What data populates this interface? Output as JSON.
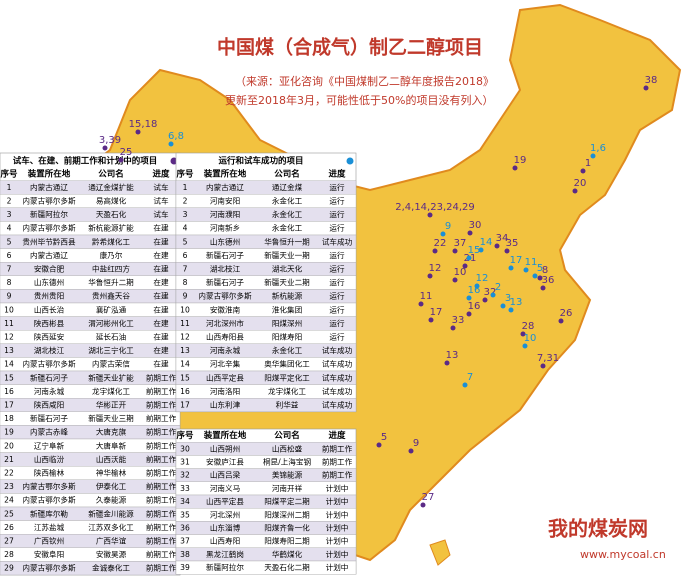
{
  "title": "中国煤（合成气）制乙二醇项目",
  "source_line1": "（来源：亚化咨询《中国煤制乙二醇年度报告2018》",
  "source_line2": "更新至2018年3月，可能性低于50%的项目没有列入）",
  "table_planned": {
    "title": "试车、在建、前期工作和计划中的项目",
    "columns": [
      "序号",
      "装置所在地",
      "公司名",
      "进度"
    ],
    "rows": [
      [
        "1",
        "内蒙古通辽",
        "通辽金煤扩能",
        "试车"
      ],
      [
        "2",
        "内蒙古鄂尔多斯",
        "易高煤化",
        "试车"
      ],
      [
        "3",
        "新疆阿拉尔",
        "天盈石化",
        "试车"
      ],
      [
        "4",
        "内蒙古鄂尔多斯",
        "新杭能源扩能",
        "在建"
      ],
      [
        "5",
        "贵州毕节黔西县",
        "黔希煤化工",
        "在建"
      ],
      [
        "6",
        "内蒙古通辽",
        "康乃尔",
        "在建"
      ],
      [
        "7",
        "安徽合肥",
        "中盐红四方",
        "在建"
      ],
      [
        "8",
        "山东德州",
        "华鲁恒升二期",
        "在建"
      ],
      [
        "9",
        "贵州贵阳",
        "贵州鑫天谷",
        "在建"
      ],
      [
        "10",
        "山西长治",
        "襄矿泓通",
        "在建"
      ],
      [
        "11",
        "陕西彬县",
        "渭河彬州化工",
        "在建"
      ],
      [
        "12",
        "陕西延安",
        "延长石油",
        "在建"
      ],
      [
        "13",
        "湖北枝江",
        "湖北三宁化工",
        "在建"
      ],
      [
        "14",
        "内蒙古鄂尔多斯",
        "内蒙古荣信",
        "在建"
      ],
      [
        "15",
        "新疆石河子",
        "新疆天业扩能",
        "前期工作"
      ],
      [
        "16",
        "河南永城",
        "龙宇煤化工",
        "前期工作"
      ],
      [
        "17",
        "陕西咸阳",
        "华彬正开",
        "前期工作"
      ],
      [
        "18",
        "新疆石河子",
        "新疆天业三期",
        "前期工作"
      ],
      [
        "19",
        "内蒙古赤峰",
        "大唐克旗",
        "前期工作"
      ],
      [
        "20",
        "辽宁阜新",
        "大唐阜新",
        "前期工作"
      ],
      [
        "21",
        "山西临汾",
        "山西沃能",
        "前期工作"
      ],
      [
        "22",
        "陕西榆林",
        "神华榆林",
        "前期工作"
      ],
      [
        "23",
        "内蒙古鄂尔多斯",
        "伊泰化工",
        "前期工作"
      ],
      [
        "24",
        "内蒙古鄂尔多斯",
        "久泰能源",
        "前期工作"
      ],
      [
        "25",
        "新疆库尔勒",
        "新疆金川能源",
        "前期工作"
      ],
      [
        "26",
        "江苏盐城",
        "江苏双多化工",
        "前期工作"
      ],
      [
        "27",
        "广西钦州",
        "广西华谊",
        "前期工作"
      ],
      [
        "28",
        "安徽阜阳",
        "安徽昊源",
        "前期工作"
      ],
      [
        "29",
        "内蒙古鄂尔多斯",
        "金诚泰化工",
        "前期工作"
      ]
    ]
  },
  "table_running": {
    "title": "运行和试车成功的项目",
    "columns": [
      "序号",
      "装置所在地",
      "公司名",
      "进度"
    ],
    "rows": [
      [
        "1",
        "内蒙古通辽",
        "通辽金煤",
        "运行"
      ],
      [
        "2",
        "河南安阳",
        "永金化工",
        "运行"
      ],
      [
        "3",
        "河南濮阳",
        "永金化工",
        "运行"
      ],
      [
        "4",
        "河南新乡",
        "永金化工",
        "运行"
      ],
      [
        "5",
        "山东德州",
        "华鲁恒升一期",
        "试车成功"
      ],
      [
        "6",
        "新疆石河子",
        "新疆天业一期",
        "运行"
      ],
      [
        "7",
        "湖北枝江",
        "湖北天化",
        "运行"
      ],
      [
        "8",
        "新疆石河子",
        "新疆天业二期",
        "运行"
      ],
      [
        "9",
        "内蒙古鄂尔多斯",
        "新杭能源",
        "运行"
      ],
      [
        "10",
        "安徽淮南",
        "淮化集团",
        "运行"
      ],
      [
        "11",
        "河北深州市",
        "阳煤深州",
        "运行"
      ],
      [
        "12",
        "山西寿阳县",
        "阳煤寿阳",
        "运行"
      ],
      [
        "13",
        "河南永城",
        "永金化工",
        "试车成功"
      ],
      [
        "14",
        "河北辛集",
        "奥华集团化工",
        "试车成功"
      ],
      [
        "15",
        "山西平定县",
        "阳煤平定化工",
        "试车成功"
      ],
      [
        "16",
        "河南洛阳",
        "龙宇煤化工",
        "试车成功"
      ],
      [
        "17",
        "山东利津",
        "利华益",
        "试车成功"
      ]
    ]
  },
  "table_planned_cont": {
    "columns": [
      "序号",
      "装置所在地",
      "公司名",
      "进度"
    ],
    "rows": [
      [
        "30",
        "山西朔州",
        "山西松盛",
        "前期工作"
      ],
      [
        "31",
        "安徽庐江县",
        "桐昆/上海宝钢",
        "前期工作"
      ],
      [
        "32",
        "山西吕梁",
        "美锦能源",
        "前期工作"
      ],
      [
        "33",
        "河南义马",
        "河南开祥",
        "计划中"
      ],
      [
        "34",
        "山西平定县",
        "阳煤平定二期",
        "计划中"
      ],
      [
        "35",
        "河北深州",
        "阳煤深州二期",
        "计划中"
      ],
      [
        "36",
        "山东淄博",
        "阳煤齐鲁一化",
        "计划中"
      ],
      [
        "37",
        "山西寿阳",
        "阳煤寿阳二期",
        "计划中"
      ],
      [
        "38",
        "黑龙江鹤岗",
        "华鹤煤化",
        "计划中"
      ],
      [
        "39",
        "新疆阿拉尔",
        "天盈石化二期",
        "计划中"
      ]
    ]
  },
  "map_labels": [
    {
      "text": "38",
      "color": "#5b2a86"
    },
    {
      "text": "15,18",
      "color": "#5b2a86"
    },
    {
      "text": "3,39",
      "color": "#5b2a86"
    },
    {
      "text": "25",
      "color": "#5b2a86"
    },
    {
      "text": "19",
      "color": "#5b2a86"
    },
    {
      "text": "20",
      "color": "#5b2a86"
    },
    {
      "text": "2,4,14,23,24,29",
      "color": "#5b2a86"
    },
    {
      "text": "30",
      "color": "#5b2a86"
    },
    {
      "text": "22",
      "color": "#5b2a86"
    },
    {
      "text": "37",
      "color": "#5b2a86"
    },
    {
      "text": "34",
      "color": "#5b2a86"
    },
    {
      "text": "35",
      "color": "#5b2a86"
    },
    {
      "text": "12",
      "color": "#5b2a86"
    },
    {
      "text": "21",
      "color": "#5b2a86"
    },
    {
      "text": "10",
      "color": "#5b2a86"
    },
    {
      "text": "32",
      "color": "#5b2a86"
    },
    {
      "text": "8",
      "color": "#5b2a86"
    },
    {
      "text": "36",
      "color": "#5b2a86"
    },
    {
      "text": "11",
      "color": "#5b2a86"
    },
    {
      "text": "17",
      "color": "#5b2a86"
    },
    {
      "text": "33",
      "color": "#5b2a86"
    },
    {
      "text": "16",
      "color": "#5b2a86"
    },
    {
      "text": "28",
      "color": "#5b2a86"
    },
    {
      "text": "26",
      "color": "#5b2a86"
    },
    {
      "text": "7,31",
      "color": "#5b2a86"
    },
    {
      "text": "13",
      "color": "#5b2a86"
    },
    {
      "text": "5",
      "color": "#5b2a86"
    },
    {
      "text": "9",
      "color": "#5b2a86"
    },
    {
      "text": "27",
      "color": "#5b2a86"
    },
    {
      "text": "1",
      "color": "#5b2a86"
    },
    {
      "text": "6,8",
      "color": "#1a8fd6"
    },
    {
      "text": "1,6",
      "color": "#1a8fd6"
    },
    {
      "text": "9",
      "color": "#1a8fd6"
    },
    {
      "text": "14",
      "color": "#1a8fd6"
    },
    {
      "text": "15",
      "color": "#1a8fd6"
    },
    {
      "text": "11",
      "color": "#1a8fd6"
    },
    {
      "text": "12",
      "color": "#1a8fd6"
    },
    {
      "text": "2",
      "color": "#1a8fd6"
    },
    {
      "text": "3",
      "color": "#1a8fd6"
    },
    {
      "text": "5",
      "color": "#1a8fd6"
    },
    {
      "text": "17",
      "color": "#1a8fd6"
    },
    {
      "text": "16",
      "color": "#1a8fd6"
    },
    {
      "text": "13",
      "color": "#1a8fd6"
    },
    {
      "text": "10",
      "color": "#1a8fd6"
    },
    {
      "text": "7",
      "color": "#1a8fd6"
    }
  ],
  "watermark": {
    "name": "我的煤炭网",
    "url": "www.mycoal.cn"
  }
}
